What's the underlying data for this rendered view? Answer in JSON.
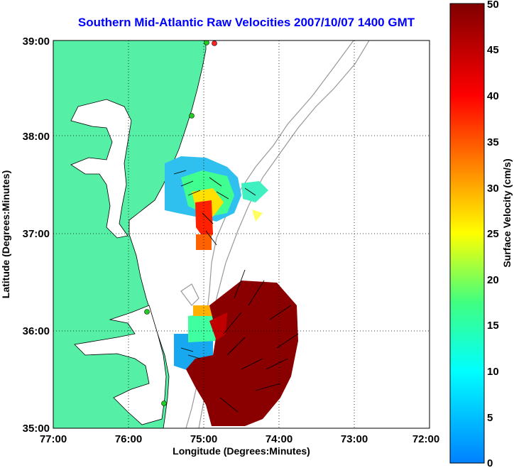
{
  "title": "Southern Mid-Atlantic Raw Velocities 2007/10/07 1400 GMT",
  "x_axis": {
    "label": "Longitude (Degrees:Minutes)",
    "ticks": [
      "77:00",
      "76:00",
      "75:00",
      "74:00",
      "73:00",
      "72:00"
    ]
  },
  "y_axis": {
    "label": "Latitude (Degrees:Minutes)",
    "ticks": [
      "39:00",
      "38:00",
      "37:00",
      "36:00",
      "35:00"
    ]
  },
  "colorbar": {
    "label": "Surface Velocity (cm/s)",
    "ticks": [
      "50",
      "45",
      "40",
      "35",
      "30",
      "25",
      "20",
      "15",
      "10",
      "5",
      "0"
    ],
    "min": 0,
    "max": 50,
    "colormap": "jet"
  },
  "colors": {
    "land": "#55f0a6",
    "title": "#0000ff",
    "bathymetry": "#888888",
    "station_marker": "#22cc22",
    "station_marker_top": "#ff2222"
  }
}
